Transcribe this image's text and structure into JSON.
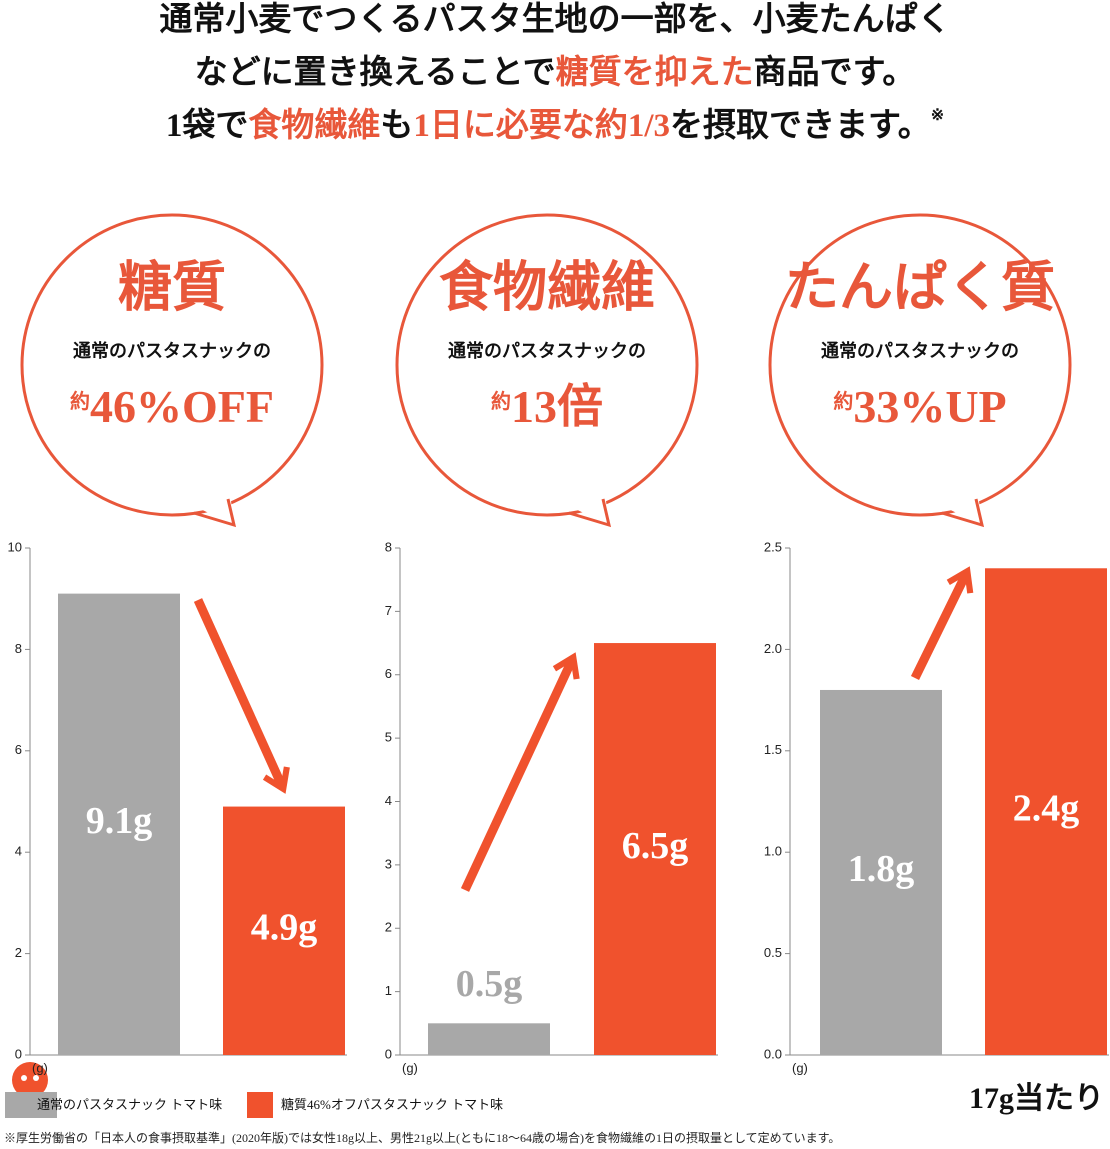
{
  "headline": [
    [
      {
        "text": "通常小麦でつくるパスタ生地の一部を、小麦たんぱく",
        "highlight": false
      }
    ],
    [
      {
        "text": "などに置き換えることで",
        "highlight": false
      },
      {
        "text": "糖質を抑えた",
        "highlight": true
      },
      {
        "text": "商品です。",
        "highlight": false
      }
    ],
    [
      {
        "text": "1袋で",
        "highlight": false
      },
      {
        "text": "食物繊維",
        "highlight": true
      },
      {
        "text": "も",
        "highlight": false
      },
      {
        "text": "1日に必要な約1/3",
        "highlight": true
      },
      {
        "text": "を摂取できます。",
        "highlight": false
      }
    ]
  ],
  "headline_note": "※",
  "highlight_color": "#e8573a",
  "legend": [
    {
      "name": "通常のパスタスナック トマト味",
      "color": "#a8a8a8"
    },
    {
      "name": "糖質46%オフパスタスナック トマト味",
      "color": "#f0522d"
    }
  ],
  "chart_data": [
    {
      "type": "bar",
      "callout": {
        "title": "糖質",
        "subtitle": "通常のパスタスナックの",
        "prefix": "約",
        "value_text": "46%OFF"
      },
      "values": [
        9.1,
        4.9
      ],
      "value_labels": [
        "9.1g",
        "4.9g"
      ],
      "colors": [
        "#a8a8a8",
        "#f0522d"
      ],
      "unit_label": "(g)",
      "ylim": [
        0,
        10
      ],
      "yticks": [
        0,
        2,
        4,
        6,
        8,
        10
      ]
    },
    {
      "type": "bar",
      "callout": {
        "title": "食物繊維",
        "subtitle": "通常のパスタスナックの",
        "prefix": "約",
        "value_text": "13倍"
      },
      "values": [
        0.5,
        6.5
      ],
      "value_labels": [
        "0.5g",
        "6.5g"
      ],
      "colors": [
        "#a8a8a8",
        "#f0522d"
      ],
      "unit_label": "(g)",
      "ylim": [
        0,
        8
      ],
      "yticks": [
        0,
        1,
        2,
        3,
        4,
        5,
        6,
        7,
        8
      ]
    },
    {
      "type": "bar",
      "callout": {
        "title": "たんぱく質",
        "subtitle": "通常のパスタスナックの",
        "prefix": "約",
        "value_text": "33%UP"
      },
      "values": [
        1.8,
        2.4
      ],
      "value_labels": [
        "1.8g",
        "2.4g"
      ],
      "colors": [
        "#a8a8a8",
        "#f0522d"
      ],
      "unit_label": "(g)",
      "ylim": [
        0,
        2.5
      ],
      "yticks": [
        {
          "value": 0,
          "label": "0.0"
        },
        0.5,
        {
          "value": 1,
          "label": "1.0"
        },
        1.5,
        {
          "value": 2,
          "label": "2.0"
        },
        2.5
      ]
    }
  ],
  "per_amount": "17g当たり",
  "footnote": "※厚生労働省の「日本人の食事摂取基準」(2020年版)では女性18g以上、男性21g以上(ともに18～64歳の場合)を食物繊維の1日の摂取量として定めています。"
}
